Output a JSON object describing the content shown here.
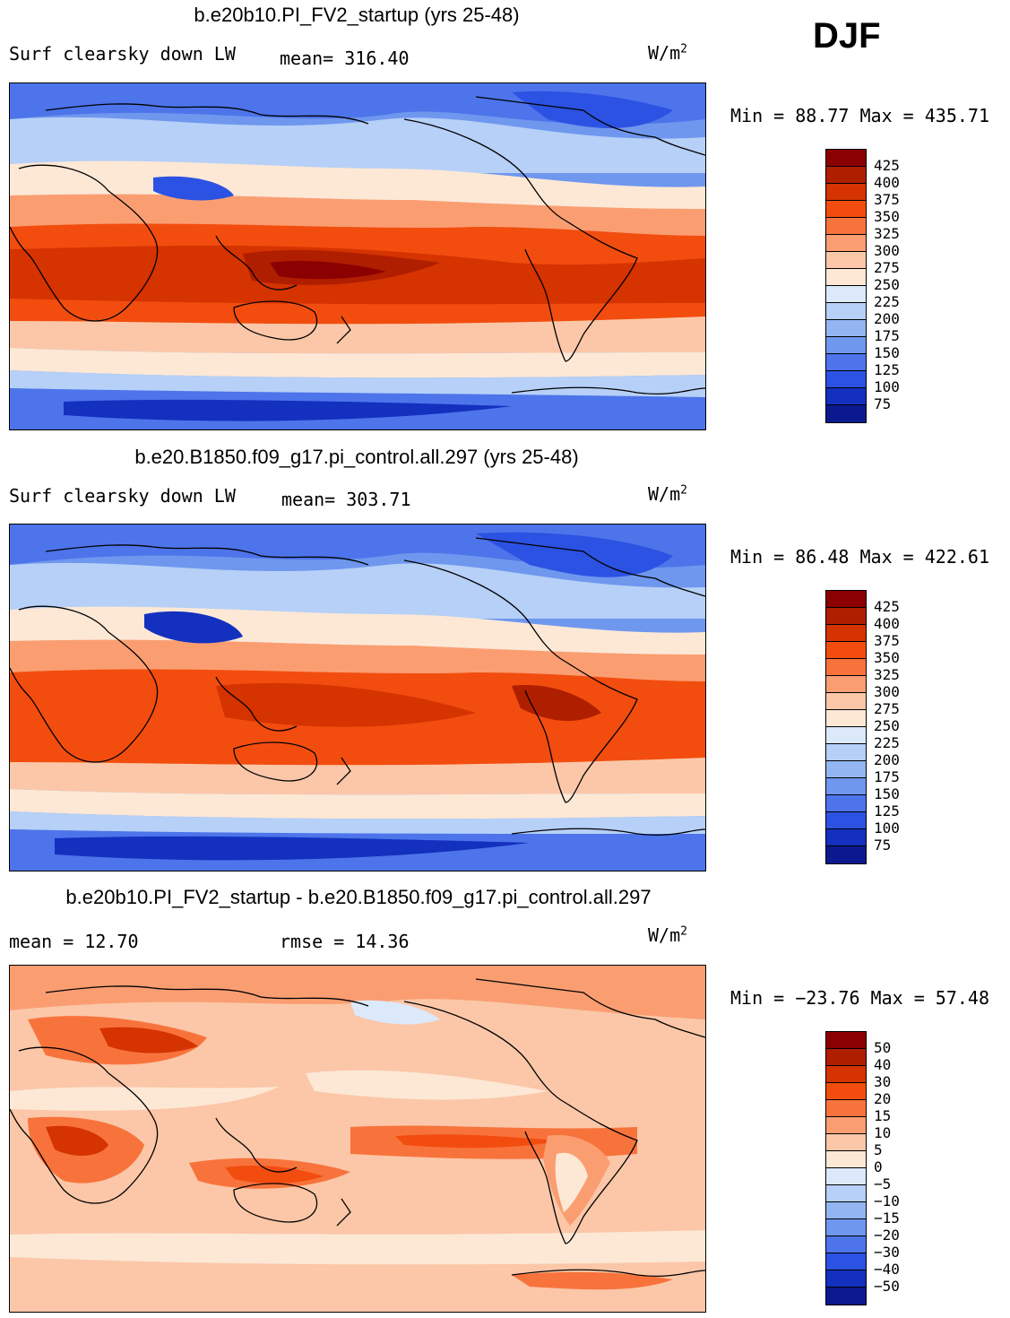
{
  "season": "DJF",
  "panels": [
    {
      "title": "b.e20b10.PI_FV2_startup (yrs 25-48)",
      "variable": "Surf clearsky down LW",
      "stat": "mean= 316.40",
      "units_base": "W/m",
      "units_exp": "2",
      "minmax": "Min =  88.77 Max = 435.71",
      "colorbar_labels": [
        "425",
        "400",
        "375",
        "350",
        "325",
        "300",
        "275",
        "250",
        "225",
        "200",
        "175",
        "150",
        "125",
        "100",
        "75"
      ],
      "colorbar_colors": [
        "#8b0000",
        "#b01e00",
        "#d53300",
        "#f24d0f",
        "#f8733c",
        "#fa9e72",
        "#fbc7a8",
        "#fde8d6",
        "#dbe9fb",
        "#b6d0f7",
        "#93b6f2",
        "#6f97ee",
        "#4d74ea",
        "#2b52e2",
        "#1330bf",
        "#0a1a8e"
      ]
    },
    {
      "title": "b.e20.B1850.f09_g17.pi_control.all.297 (yrs 25-48)",
      "variable": "Surf clearsky down LW",
      "stat": "mean= 303.71",
      "units_base": "W/m",
      "units_exp": "2",
      "minmax": "Min =  86.48 Max = 422.61",
      "colorbar_labels": [
        "425",
        "400",
        "375",
        "350",
        "325",
        "300",
        "275",
        "250",
        "225",
        "200",
        "175",
        "150",
        "125",
        "100",
        "75"
      ],
      "colorbar_colors": [
        "#8b0000",
        "#b01e00",
        "#d53300",
        "#f24d0f",
        "#f8733c",
        "#fa9e72",
        "#fbc7a8",
        "#fde8d6",
        "#dbe9fb",
        "#b6d0f7",
        "#93b6f2",
        "#6f97ee",
        "#4d74ea",
        "#2b52e2",
        "#1330bf",
        "#0a1a8e"
      ]
    },
    {
      "title": "b.e20b10.PI_FV2_startup - b.e20.B1850.f09_g17.pi_control.all.297",
      "mean_stat": "mean =   12.70",
      "rmse_stat": "rmse =   14.36",
      "units_base": "W/m",
      "units_exp": "2",
      "minmax": "Min = −23.76 Max =  57.48",
      "colorbar_labels": [
        "50",
        "40",
        "30",
        "20",
        "15",
        "10",
        "5",
        "0",
        "−5",
        "−10",
        "−15",
        "−20",
        "−30",
        "−40",
        "−50"
      ],
      "colorbar_colors": [
        "#8b0000",
        "#b01e00",
        "#d53300",
        "#f24d0f",
        "#f8733c",
        "#fa9e72",
        "#fbc7a8",
        "#fde8d6",
        "#dbe9fb",
        "#b6d0f7",
        "#93b6f2",
        "#6f97ee",
        "#4d74ea",
        "#2b52e2",
        "#1330bf",
        "#0a1a8e"
      ]
    }
  ]
}
